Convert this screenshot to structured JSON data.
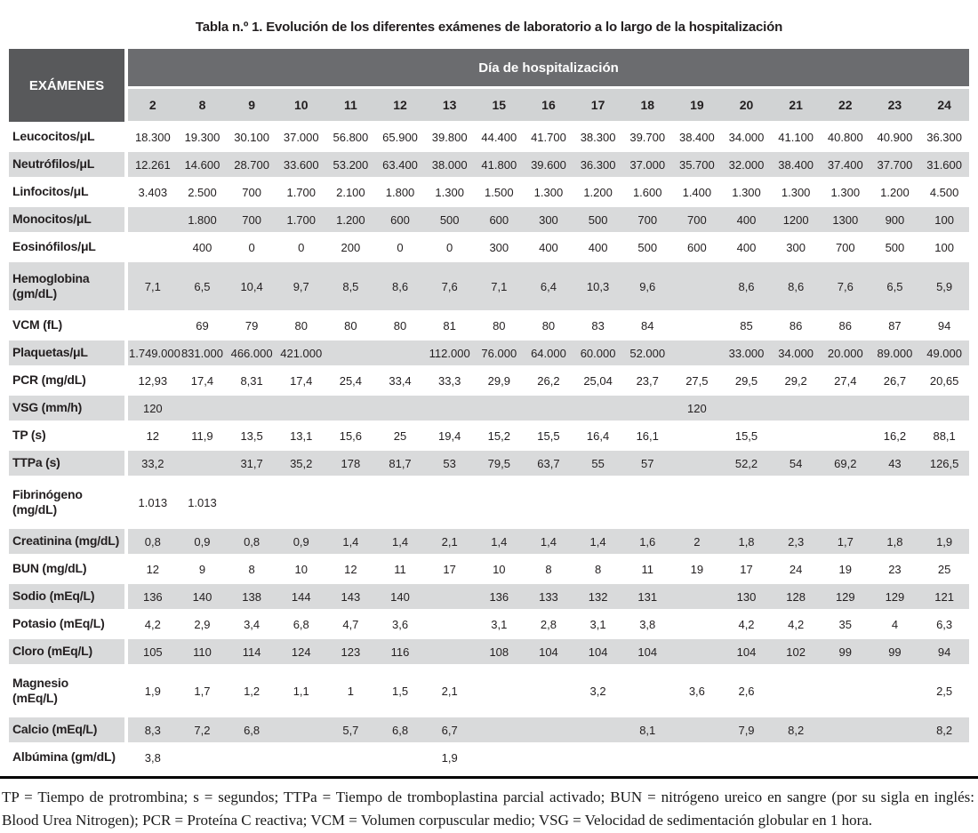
{
  "title": "Tabla n.º 1. Evolución de los diferentes exámenes de laboratorio a lo largo de la hospitalización",
  "colors": {
    "header_dark": "#58595b",
    "header_band": "#6b6c6f",
    "day_row": "#d1d3d4",
    "row_shade": "#d9dadb"
  },
  "table": {
    "corner_header": "EXÁMENES",
    "group_header": "Día de hospitalización",
    "days": [
      "2",
      "8",
      "9",
      "10",
      "11",
      "12",
      "13",
      "15",
      "16",
      "17",
      "18",
      "19",
      "20",
      "21",
      "22",
      "23",
      "24"
    ],
    "rows": [
      {
        "label": "Leucocitos/μL",
        "values": [
          "18.300",
          "19.300",
          "30.100",
          "37.000",
          "56.800",
          "65.900",
          "39.800",
          "44.400",
          "41.700",
          "38.300",
          "39.700",
          "38.400",
          "34.000",
          "41.100",
          "40.800",
          "40.900",
          "36.300"
        ]
      },
      {
        "label": "Neutrófilos/μL",
        "values": [
          "12.261",
          "14.600",
          "28.700",
          "33.600",
          "53.200",
          "63.400",
          "38.000",
          "41.800",
          "39.600",
          "36.300",
          "37.000",
          "35.700",
          "32.000",
          "38.400",
          "37.400",
          "37.700",
          "31.600"
        ]
      },
      {
        "label": "Linfocitos/μL",
        "values": [
          "3.403",
          "2.500",
          "700",
          "1.700",
          "2.100",
          "1.800",
          "1.300",
          "1.500",
          "1.300",
          "1.200",
          "1.600",
          "1.400",
          "1.300",
          "1.300",
          "1.300",
          "1.200",
          "4.500"
        ]
      },
      {
        "label": "Monocitos/μL",
        "values": [
          "",
          "1.800",
          "700",
          "1.700",
          "1.200",
          "600",
          "500",
          "600",
          "300",
          "500",
          "700",
          "700",
          "400",
          "1200",
          "1300",
          "900",
          "100"
        ]
      },
      {
        "label": "Eosinófilos/μL",
        "values": [
          "",
          "400",
          "0",
          "0",
          "200",
          "0",
          "0",
          "300",
          "400",
          "400",
          "500",
          "600",
          "400",
          "300",
          "700",
          "500",
          "100"
        ]
      },
      {
        "label": "Hemoglobina\n(gm/dL)",
        "values": [
          "7,1",
          "6,5",
          "10,4",
          "9,7",
          "8,5",
          "8,6",
          "7,6",
          "7,1",
          "6,4",
          "10,3",
          "9,6",
          "",
          "8,6",
          "8,6",
          "7,6",
          "6,5",
          "5,9"
        ]
      },
      {
        "label": "VCM (fL)",
        "values": [
          "",
          "69",
          "79",
          "80",
          "80",
          "80",
          "81",
          "80",
          "80",
          "83",
          "84",
          "",
          "85",
          "86",
          "86",
          "87",
          "94"
        ]
      },
      {
        "label": "Plaquetas/μL",
        "values": [
          "1.749.000",
          "831.000",
          "466.000",
          "421.000",
          "",
          "",
          "112.000",
          "76.000",
          "64.000",
          "60.000",
          "52.000",
          "",
          "33.000",
          "34.000",
          "20.000",
          "89.000",
          "49.000"
        ]
      },
      {
        "label": "PCR (mg/dL)",
        "values": [
          "12,93",
          "17,4",
          "8,31",
          "17,4",
          "25,4",
          "33,4",
          "33,3",
          "29,9",
          "26,2",
          "25,04",
          "23,7",
          "27,5",
          "29,5",
          "29,2",
          "27,4",
          "26,7",
          "20,65"
        ]
      },
      {
        "label": "VSG (mm/h)",
        "values": [
          "120",
          "",
          "",
          "",
          "",
          "",
          "",
          "",
          "",
          "",
          "",
          "120",
          "",
          "",
          "",
          "",
          ""
        ]
      },
      {
        "label": "TP (s)",
        "values": [
          "12",
          "11,9",
          "13,5",
          "13,1",
          "15,6",
          "25",
          "19,4",
          "15,2",
          "15,5",
          "16,4",
          "16,1",
          "",
          "15,5",
          "",
          "",
          "16,2",
          "88,1"
        ]
      },
      {
        "label": "TTPa (s)",
        "values": [
          "33,2",
          "",
          "31,7",
          "35,2",
          "178",
          "81,7",
          "53",
          "79,5",
          "63,7",
          "55",
          "57",
          "",
          "52,2",
          "54",
          "69,2",
          "43",
          "126,5"
        ]
      },
      {
        "label": "Fibrinógeno\n(mg/dL)",
        "values": [
          "1.013",
          "1.013",
          "",
          "",
          "",
          "",
          "",
          "",
          "",
          "",
          "",
          "",
          "",
          "",
          "",
          "",
          ""
        ]
      },
      {
        "label": "Creatinina (mg/dL)",
        "values": [
          "0,8",
          "0,9",
          "0,8",
          "0,9",
          "1,4",
          "1,4",
          "2,1",
          "1,4",
          "1,4",
          "1,4",
          "1,6",
          "2",
          "1,8",
          "2,3",
          "1,7",
          "1,8",
          "1,9"
        ]
      },
      {
        "label": "BUN (mg/dL)",
        "values": [
          "12",
          "9",
          "8",
          "10",
          "12",
          "11",
          "17",
          "10",
          "8",
          "8",
          "11",
          "19",
          "17",
          "24",
          "19",
          "23",
          "25"
        ]
      },
      {
        "label": "Sodio (mEq/L)",
        "values": [
          "136",
          "140",
          "138",
          "144",
          "143",
          "140",
          "",
          "136",
          "133",
          "132",
          "131",
          "",
          "130",
          "128",
          "129",
          "129",
          "121"
        ]
      },
      {
        "label": "Potasio (mEq/L)",
        "values": [
          "4,2",
          "2,9",
          "3,4",
          "6,8",
          "4,7",
          "3,6",
          "",
          "3,1",
          "2,8",
          "3,1",
          "3,8",
          "",
          "4,2",
          "4,2",
          "35",
          "4",
          "6,3"
        ]
      },
      {
        "label": "Cloro (mEq/L)",
        "values": [
          "105",
          "110",
          "114",
          "124",
          "123",
          "116",
          "",
          "108",
          "104",
          "104",
          "104",
          "",
          "104",
          "102",
          "99",
          "99",
          "94"
        ]
      },
      {
        "label": "Magnesio\n(mEq/L)",
        "values": [
          "1,9",
          "1,7",
          "1,2",
          "1,1",
          "1",
          "1,5",
          "2,1",
          "",
          "",
          "3,2",
          "",
          "3,6",
          "2,6",
          "",
          "",
          "",
          "2,5"
        ]
      },
      {
        "label": "Calcio (mEq/L)",
        "values": [
          "8,3",
          "7,2",
          "6,8",
          "",
          "5,7",
          "6,8",
          "6,7",
          "",
          "",
          "",
          "8,1",
          "",
          "7,9",
          "8,2",
          "",
          "",
          "8,2"
        ]
      },
      {
        "label": "Albúmina (gm/dL)",
        "values": [
          "3,8",
          "",
          "",
          "",
          "",
          "",
          "1,9",
          "",
          "",
          "",
          "",
          "",
          "",
          "",
          "",
          "",
          ""
        ]
      }
    ]
  },
  "footnote": "TP = Tiempo de protrombina; s = segundos; TTPa = Tiempo de tromboplastina parcial activado; BUN = nitrógeno ureico en sangre (por su sigla en inglés: Blood Urea Nitrogen); PCR = Proteína C reactiva; VCM = Volumen corpuscular medio; VSG = Velocidad de sedimentación globular en 1 hora."
}
